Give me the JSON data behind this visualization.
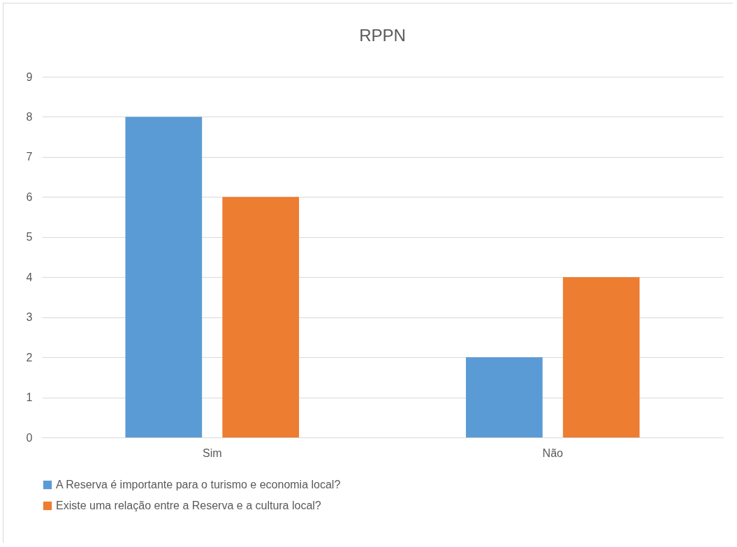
{
  "chart_data": {
    "type": "bar",
    "title": "RPPN",
    "categories": [
      "Sim",
      "Não"
    ],
    "series": [
      {
        "name": "A Reserva é importante para o turismo e economia local?",
        "color": "#5b9bd5",
        "values": [
          8,
          2
        ]
      },
      {
        "name": "Existe uma relação entre a Reserva e a cultura local?",
        "color": "#ed7d31",
        "values": [
          6,
          4
        ]
      }
    ],
    "ylim": [
      0,
      9
    ],
    "yticks": [
      0,
      1,
      2,
      3,
      4,
      5,
      6,
      7,
      8,
      9
    ],
    "grid": "y",
    "legend": "bottom"
  }
}
